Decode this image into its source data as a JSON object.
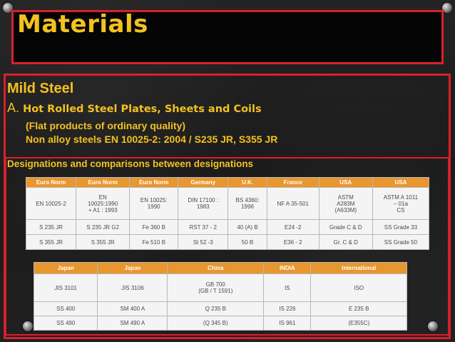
{
  "slide": {
    "title": "Materials",
    "heading": "Mild Steel",
    "sub_letter": "A.",
    "sub_text": " Hot Rolled Steel Plates, Sheets and Coils",
    "line1": "(Flat products of ordinary quality)",
    "line2": "Non alloy steels EN 10025-2: 2004 / S235 JR, S355 JR",
    "designations_title": "Designations and comparisons between designations"
  },
  "table1": {
    "headers": [
      "Euro Norm",
      "Euro Norm",
      "Euro Norm",
      "Germany",
      "U.K.",
      "France",
      "USA",
      "USA"
    ],
    "rows": [
      [
        "EN 10025-2",
        "EN\n10025:1990\n+ A1 : 1993",
        "EN 10025:\n1990",
        "DIN 17100 :\n1983",
        "BS 4360:\n1996",
        "NF A 35-501",
        "ASTM\nA283M\n(A633M)",
        "ASTM A 1011\n– 01a\nCS"
      ],
      [
        "S 235 JR",
        "S 235 JR G2",
        "Fe 360 B",
        "RST 37 - 2",
        "40 (A) B",
        "E24 -2",
        "Grade C & D",
        "SS Grade 33"
      ],
      [
        "S 355 JR",
        "S 355 JR",
        "Fe 510 B",
        "St 52 -3",
        "50 B",
        "E36 - 2",
        "Gr. C & D",
        "SS Grade 50"
      ]
    ]
  },
  "table2": {
    "headers": [
      "Japan",
      "Japan",
      "China",
      "INDIA",
      "International"
    ],
    "rows": [
      [
        "JIS 3101",
        "JIS 3106",
        "GB 700\n(GB / T 1591)",
        "IS",
        "ISO"
      ],
      [
        "SS 400",
        "SM 400 A",
        "Q 235 B",
        "IS 226",
        "E 235 B"
      ],
      [
        "SS 490",
        "SM 490 A",
        "(Q 345 B)",
        "IS 961",
        "(E355C)"
      ]
    ]
  }
}
